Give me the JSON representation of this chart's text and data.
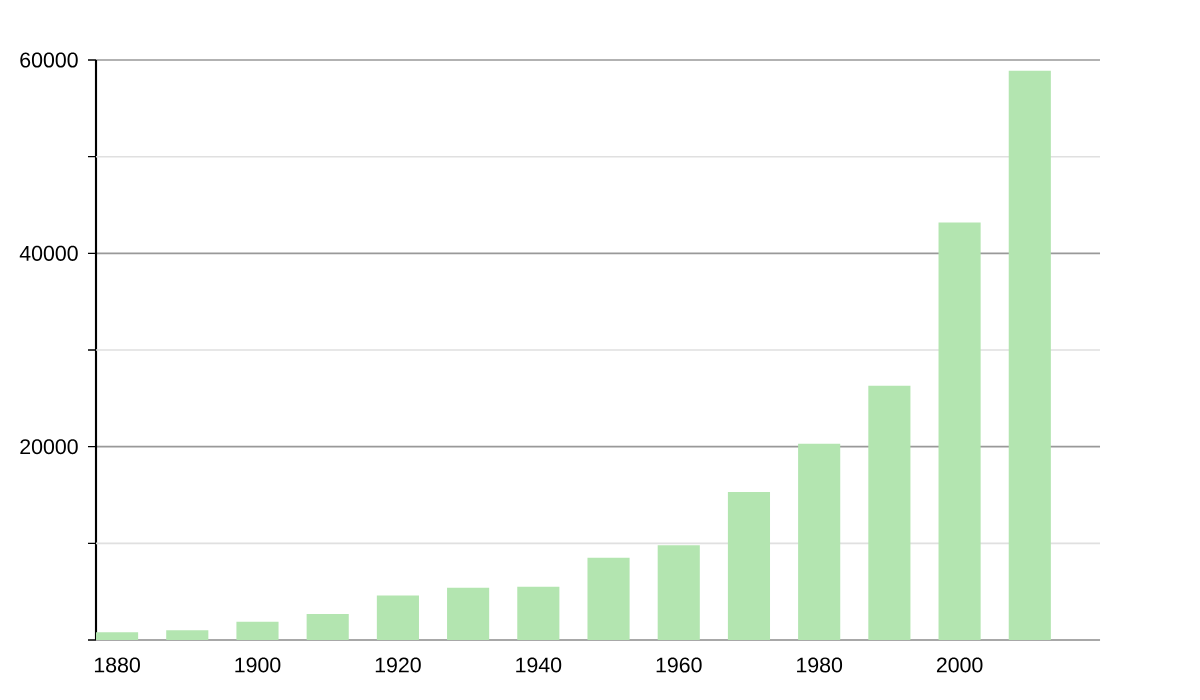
{
  "chart_data": {
    "type": "bar",
    "x": [
      1880,
      1890,
      1900,
      1910,
      1920,
      1930,
      1940,
      1950,
      1960,
      1970,
      1980,
      1990,
      2000,
      2010
    ],
    "values": [
      800,
      1000,
      1900,
      2700,
      4600,
      5400,
      5500,
      8500,
      9800,
      15300,
      20300,
      26300,
      43200,
      58900
    ],
    "color": "#b3e5b0",
    "xlim": [
      1877,
      2020
    ],
    "xticks": [
      1880,
      1900,
      1920,
      1940,
      1960,
      1980,
      2000
    ],
    "ylim": [
      0,
      60000
    ],
    "yticks": [
      {
        "value": 0,
        "label": null
      },
      {
        "value": 10000,
        "label": null
      },
      20000,
      {
        "value": 30000,
        "label": null
      },
      40000,
      {
        "value": 50000,
        "label": null
      },
      60000
    ],
    "grid": "y"
  }
}
